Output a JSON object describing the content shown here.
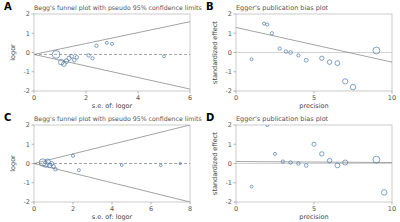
{
  "chart_data": [
    {
      "type": "scatter",
      "title": "Begg's funnel plot with pseudo 95% confidence limits",
      "annotations": [
        "A"
      ],
      "xlabel": "s.e. of: logor",
      "ylabel": "logor",
      "xlim": [
        0,
        6
      ],
      "ylim": [
        -2,
        2
      ],
      "xticks": [
        0,
        2,
        4,
        6
      ],
      "yticks": [
        -2,
        -1,
        0,
        1,
        2
      ],
      "series": [
        {
          "type": "line",
          "x": [
            0.0,
            6.0
          ],
          "values": [
            -0.1,
            1.6
          ]
        },
        {
          "type": "line",
          "x": [
            0.0,
            6.0
          ],
          "values": [
            -0.1,
            -1.9
          ]
        },
        {
          "type": "line",
          "line_style": "dashed",
          "x": [
            0.0,
            6.0
          ],
          "values": [
            -0.1,
            -0.1
          ]
        },
        {
          "type": "scatter",
          "marker": "hollow-circle",
          "x": [
            0.85,
            1.05,
            1.15,
            1.25,
            1.35,
            1.45,
            1.55,
            1.65,
            2.1,
            2.25,
            2.4,
            2.8,
            3.0,
            5.0
          ],
          "values": [
            -0.1,
            -0.5,
            -0.6,
            -0.45,
            -0.3,
            -0.2,
            -0.4,
            -0.25,
            -0.15,
            -0.3,
            0.35,
            0.5,
            0.45,
            -0.2
          ],
          "sizes": [
            90,
            45,
            35,
            30,
            28,
            22,
            20,
            18,
            16,
            16,
            16,
            14,
            14,
            12
          ]
        }
      ]
    },
    {
      "type": "scatter",
      "title": "Egger's publication bias plot",
      "annotations": [
        "B"
      ],
      "xlabel": "precision",
      "ylabel": "standardized effect",
      "xlim": [
        0,
        10
      ],
      "ylim": [
        -2,
        2
      ],
      "xticks": [
        0,
        5,
        10
      ],
      "yticks": [
        -2,
        -1,
        0,
        1,
        2
      ],
      "series": [
        {
          "type": "hline",
          "values": [
            0
          ]
        },
        {
          "type": "line",
          "x": [
            0,
            10
          ],
          "values": [
            1.3,
            -0.5
          ]
        },
        {
          "type": "scatter",
          "marker": "hollow-circle",
          "x": [
            1.0,
            1.8,
            2.0,
            2.3,
            2.8,
            3.2,
            3.5,
            4.0,
            4.5,
            5.5,
            6.0,
            6.5,
            7.0,
            7.5,
            9.0
          ],
          "values": [
            -0.35,
            1.5,
            1.45,
            1.0,
            0.2,
            0.05,
            0.0,
            -0.15,
            -0.4,
            -0.3,
            -0.5,
            -0.55,
            -1.5,
            -1.8,
            0.1
          ],
          "sizes": [
            12,
            14,
            14,
            16,
            16,
            18,
            20,
            16,
            22,
            28,
            30,
            35,
            40,
            45,
            70
          ]
        }
      ]
    },
    {
      "type": "scatter",
      "title": "Begg's funnel plot with pseudo 95% confidence limits",
      "annotations": [
        "C"
      ],
      "xlabel": "s.e. of: logor",
      "ylabel": "logor",
      "xlim": [
        0,
        8
      ],
      "ylim": [
        -2,
        2
      ],
      "xticks": [
        0,
        2,
        4,
        6,
        8
      ],
      "yticks": [
        -2,
        -1,
        0,
        1,
        2
      ],
      "series": [
        {
          "type": "line",
          "x": [
            0.0,
            8.0
          ],
          "values": [
            0.0,
            2.0
          ]
        },
        {
          "type": "line",
          "x": [
            0.0,
            8.0
          ],
          "values": [
            0.0,
            -2.0
          ]
        },
        {
          "type": "line",
          "line_style": "dashed",
          "x": [
            0.0,
            8.0
          ],
          "values": [
            0.0,
            0.0
          ]
        },
        {
          "type": "scatter",
          "marker": "hollow-circle",
          "x": [
            0.45,
            0.6,
            0.7,
            0.8,
            0.9,
            1.0,
            1.1,
            2.0,
            2.3,
            4.5,
            6.5,
            7.5
          ],
          "values": [
            0.05,
            -0.05,
            0.1,
            -0.1,
            0.0,
            -0.15,
            -0.3,
            0.4,
            -0.35,
            -0.08,
            -0.1,
            0.0
          ],
          "sizes": [
            80,
            50,
            38,
            30,
            25,
            20,
            18,
            14,
            14,
            12,
            10,
            8
          ]
        }
      ]
    },
    {
      "type": "scatter",
      "title": "Egger's publication bias plot",
      "annotations": [
        "D"
      ],
      "xlabel": "precision",
      "ylabel": "standardized effect",
      "xlim": [
        0,
        10
      ],
      "ylim": [
        -2,
        2
      ],
      "xticks": [
        0,
        5,
        10
      ],
      "yticks": [
        -2,
        -1,
        0,
        1,
        2
      ],
      "series": [
        {
          "type": "hline",
          "values": [
            0
          ]
        },
        {
          "type": "line",
          "x": [
            0,
            10
          ],
          "values": [
            0.1,
            0.05
          ]
        },
        {
          "type": "scatter",
          "marker": "hollow-circle",
          "x": [
            1.0,
            2.0,
            2.5,
            3.0,
            3.5,
            4.0,
            4.5,
            5.0,
            5.5,
            6.0,
            6.5,
            7.0,
            9.0,
            9.5
          ],
          "values": [
            -1.2,
            2.0,
            0.5,
            0.1,
            0.05,
            0.0,
            -0.1,
            1.0,
            0.5,
            0.15,
            -0.1,
            0.05,
            0.2,
            -1.5
          ],
          "sizes": [
            12,
            14,
            14,
            16,
            18,
            18,
            20,
            25,
            28,
            30,
            35,
            38,
            70,
            45
          ]
        }
      ]
    }
  ]
}
